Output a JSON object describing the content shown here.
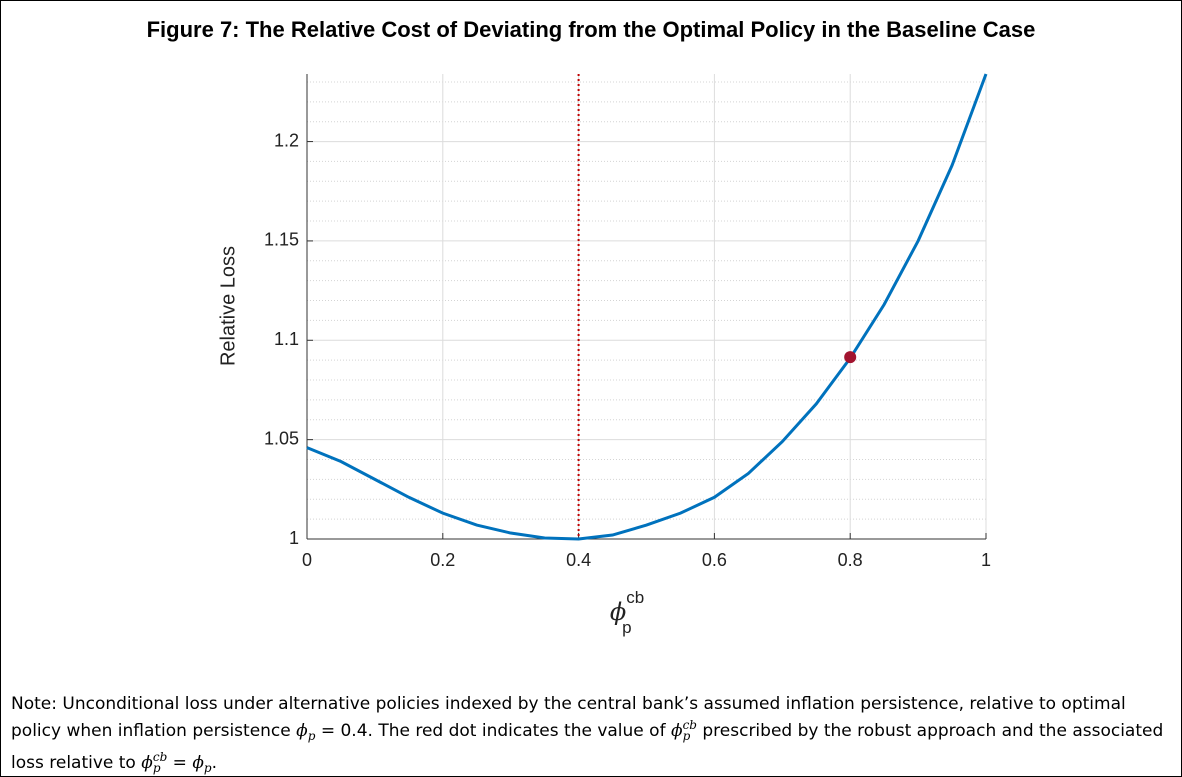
{
  "chart_data": {
    "type": "line",
    "title": "Figure 7: The Relative Cost of Deviating from the Optimal Policy in the Baseline Case",
    "ylabel": "Relative Loss",
    "xlabel": {
      "symbol": "ϕ",
      "superscript": "cb",
      "subscript": "p"
    },
    "x": [
      0,
      0.05,
      0.1,
      0.15,
      0.2,
      0.25,
      0.3,
      0.35,
      0.4,
      0.45,
      0.5,
      0.55,
      0.6,
      0.65,
      0.7,
      0.75,
      0.8,
      0.85,
      0.9,
      0.95,
      1.0
    ],
    "series": [
      {
        "color": "#0072bd",
        "values": [
          1.046,
          1.039,
          1.03,
          1.021,
          1.013,
          1.007,
          1.003,
          1.0005,
          1.0,
          1.002,
          1.007,
          1.013,
          1.021,
          1.033,
          1.049,
          1.068,
          1.091,
          1.118,
          1.15,
          1.188,
          1.234
        ]
      }
    ],
    "highlight": {
      "x": 0.8,
      "y": 1.0915,
      "color": "#a2142f"
    },
    "vline": {
      "x": 0.4,
      "color": "#c00000"
    },
    "xlim": [
      0,
      1
    ],
    "ylim": [
      1,
      1.234
    ],
    "xticks": [
      0,
      0.2,
      0.4,
      0.6,
      0.8,
      1
    ],
    "yticks": [
      1,
      1.05,
      1.1,
      1.15,
      1.2
    ],
    "grid": true,
    "minor_grid": true
  },
  "note": [
    {
      "text": "Note: Unconditional loss under alternative policies indexed by the central bank’s assumed inflation persistence, relative to optimal policy when inflation persistence "
    },
    {
      "math": "ϕ"
    },
    {
      "sub": "p"
    },
    {
      "text": " = 0.4. The red dot indicates the value of "
    },
    {
      "math": "ϕ"
    },
    {
      "sup": "cb",
      "sub": "p"
    },
    {
      "text": " prescribed by the robust approach and the associated loss relative to "
    },
    {
      "math": "ϕ"
    },
    {
      "sup": "cb",
      "sub": "p"
    },
    {
      "text": " = "
    },
    {
      "math": "ϕ"
    },
    {
      "sub": "p"
    },
    {
      "text": "."
    }
  ]
}
